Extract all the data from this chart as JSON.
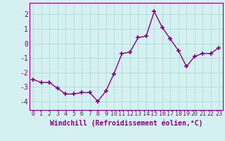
{
  "x": [
    0,
    1,
    2,
    3,
    4,
    5,
    6,
    7,
    8,
    9,
    10,
    11,
    12,
    13,
    14,
    15,
    16,
    17,
    18,
    19,
    20,
    21,
    22,
    23
  ],
  "y": [
    -2.5,
    -2.7,
    -2.7,
    -3.1,
    -3.5,
    -3.5,
    -3.4,
    -3.4,
    -4.0,
    -3.3,
    -2.1,
    -0.7,
    -0.6,
    0.4,
    0.5,
    2.2,
    1.1,
    0.3,
    -0.5,
    -1.6,
    -0.9,
    -0.7,
    -0.7,
    -0.3
  ],
  "line_color": "#880088",
  "marker": "+",
  "markersize": 4,
  "markeredgewidth": 1.2,
  "linewidth": 1.0,
  "bg_color": "#d5f0f0",
  "grid_color": "#b0dada",
  "xlabel": "Windchill (Refroidissement éolien,°C)",
  "xlabel_fontsize": 7,
  "tick_fontsize": 6,
  "yticks": [
    -4,
    -3,
    -2,
    -1,
    0,
    1,
    2
  ],
  "xtick_labels": [
    "0",
    "1",
    "2",
    "3",
    "4",
    "5",
    "6",
    "7",
    "8",
    "9",
    "10",
    "11",
    "12",
    "13",
    "14",
    "15",
    "16",
    "17",
    "18",
    "19",
    "20",
    "21",
    "22",
    "23"
  ],
  "ylim": [
    -4.6,
    2.8
  ],
  "xlim": [
    -0.5,
    23.5
  ]
}
